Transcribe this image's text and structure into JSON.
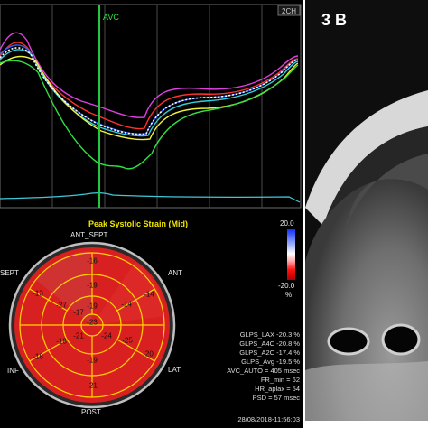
{
  "curve_panel": {
    "avc_label": "AVC",
    "view_label": "2CH"
  },
  "bullseye": {
    "title": "Peak Systolic Strain (Mid)",
    "walls": [
      "ANT_SEPT",
      "ANT",
      "LAT",
      "POST",
      "INF",
      "SEPT"
    ],
    "segments": [
      "-16",
      "-14",
      "-20",
      "-21",
      "-18",
      "-13",
      "-19",
      "-14",
      "-25",
      "-19",
      "-18",
      "-27",
      "-19",
      "-23",
      "-24",
      "-21",
      "-17"
    ],
    "colors": {
      "strong": "#e01010",
      "weak": "#d85a5a",
      "ring": "#ffd400",
      "frame": "#bfbfbf"
    }
  },
  "colorbar": {
    "max_label": "20.0",
    "min_label": "-20.0",
    "unit": "%"
  },
  "stats": [
    "GLPS_LAX -20.3 %",
    "GLPS_A4C -20.8 %",
    "GLPS_A2C -17.4 %",
    "GLPS_Avg -19.5 %",
    "AVC_AUTO = 405 msec",
    "FR_min = 62",
    "HR_aplax = 54",
    "PSD = 57 msec"
  ],
  "timestamp": "28/08/2018-11:56:03",
  "mri": {
    "panel_label": "3 B"
  }
}
